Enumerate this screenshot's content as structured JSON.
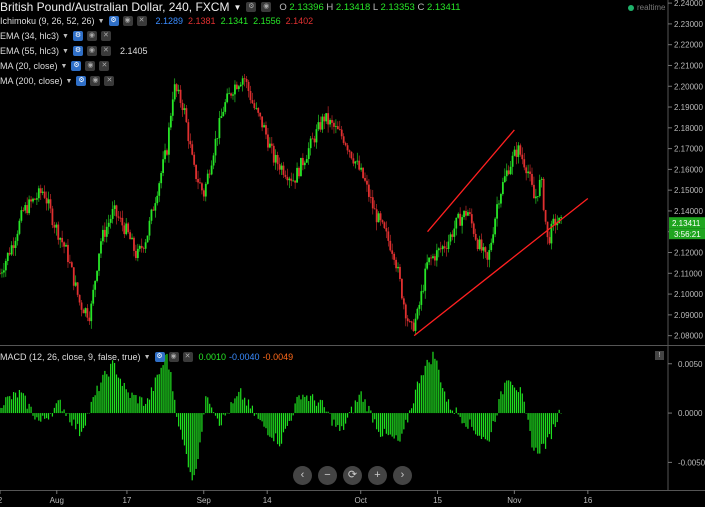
{
  "header": {
    "title": "British Pound/Australian Dollar, 240, FXCM",
    "o_label": "O",
    "o": "2.13396",
    "h_label": "H",
    "h": "2.13418",
    "l_label": "L",
    "l": "2.13353",
    "c_label": "C",
    "c": "2.13411",
    "realtime": "realtime"
  },
  "indicators": [
    {
      "label": "Ichimoku (9, 26, 52, 26)",
      "values": [
        "2.1289",
        "2.1381",
        "2.1341",
        "2.1556",
        "2.1402"
      ],
      "colors": [
        "#3a8cff",
        "#e03030",
        "#27e627",
        "#27e627",
        "#e03030"
      ]
    },
    {
      "label": "EMA (34, hlc3)",
      "values": []
    },
    {
      "label": "EMA (55, hlc3)",
      "values": [
        "2.1405"
      ],
      "colors": [
        "#ddd"
      ]
    },
    {
      "label": "MA (20, close)",
      "values": []
    },
    {
      "label": "MA (200, close)",
      "values": []
    }
  ],
  "macd": {
    "label": "MACD (12, 26, close, 9, false, true)",
    "values": [
      "0.0010",
      "-0.0040",
      "-0.0049"
    ],
    "colors": [
      "#27e627",
      "#3a8cff",
      "#ff6a1a"
    ]
  },
  "price_badges": {
    "last": "2.13411",
    "countdown": "3:56:21"
  },
  "nav": [
    "‹",
    "−",
    "⟳",
    "+",
    "›"
  ],
  "colors": {
    "up": "#27e627",
    "down": "#e03030",
    "channel": "#ff2020",
    "hist": "#1fe01f",
    "background": "#000000"
  },
  "chart_data": {
    "type": "candlestick",
    "price_axis": {
      "ticks": [
        "2.24000",
        "2.23000",
        "2.22000",
        "2.21000",
        "2.20000",
        "2.19000",
        "2.18000",
        "2.17000",
        "2.16000",
        "2.15000",
        "2.14000",
        "2.13000",
        "2.12000",
        "2.11000",
        "2.10000",
        "2.09000",
        "2.08000"
      ],
      "range": [
        2.0755,
        2.2415
      ]
    },
    "time_axis": {
      "labels": [
        "2",
        "Aug",
        "17",
        "Sep",
        "14",
        "Oct",
        "15",
        "Nov",
        "16"
      ],
      "label_positions": [
        0.0,
        0.085,
        0.19,
        0.305,
        0.4,
        0.54,
        0.655,
        0.77,
        0.88
      ]
    },
    "price_path": [
      [
        0.0,
        2.11
      ],
      [
        0.02,
        2.125
      ],
      [
        0.035,
        2.14
      ],
      [
        0.05,
        2.145
      ],
      [
        0.065,
        2.15
      ],
      [
        0.08,
        2.135
      ],
      [
        0.1,
        2.12
      ],
      [
        0.12,
        2.095
      ],
      [
        0.135,
        2.09
      ],
      [
        0.15,
        2.125
      ],
      [
        0.17,
        2.14
      ],
      [
        0.19,
        2.13
      ],
      [
        0.205,
        2.118
      ],
      [
        0.22,
        2.128
      ],
      [
        0.235,
        2.15
      ],
      [
        0.25,
        2.17
      ],
      [
        0.26,
        2.2
      ],
      [
        0.275,
        2.19
      ],
      [
        0.29,
        2.16
      ],
      [
        0.305,
        2.148
      ],
      [
        0.32,
        2.17
      ],
      [
        0.335,
        2.19
      ],
      [
        0.35,
        2.2
      ],
      [
        0.365,
        2.205
      ],
      [
        0.38,
        2.19
      ],
      [
        0.395,
        2.18
      ],
      [
        0.41,
        2.165
      ],
      [
        0.425,
        2.16
      ],
      [
        0.44,
        2.155
      ],
      [
        0.455,
        2.165
      ],
      [
        0.47,
        2.175
      ],
      [
        0.485,
        2.185
      ],
      [
        0.5,
        2.18
      ],
      [
        0.515,
        2.175
      ],
      [
        0.53,
        2.165
      ],
      [
        0.545,
        2.155
      ],
      [
        0.56,
        2.14
      ],
      [
        0.575,
        2.13
      ],
      [
        0.59,
        2.12
      ],
      [
        0.605,
        2.095
      ],
      [
        0.615,
        2.082
      ],
      [
        0.625,
        2.09
      ],
      [
        0.64,
        2.115
      ],
      [
        0.655,
        2.12
      ],
      [
        0.67,
        2.125
      ],
      [
        0.685,
        2.135
      ],
      [
        0.7,
        2.14
      ],
      [
        0.715,
        2.125
      ],
      [
        0.73,
        2.115
      ],
      [
        0.745,
        2.145
      ],
      [
        0.76,
        2.16
      ],
      [
        0.775,
        2.17
      ],
      [
        0.79,
        2.16
      ],
      [
        0.8,
        2.145
      ],
      [
        0.81,
        2.155
      ],
      [
        0.82,
        2.125
      ],
      [
        0.83,
        2.135
      ],
      [
        0.84,
        2.134
      ]
    ],
    "channel": {
      "upper": [
        [
          0.64,
          2.13
        ],
        [
          0.77,
          2.179
        ]
      ],
      "lower": [
        [
          0.62,
          2.08
        ],
        [
          0.88,
          2.146
        ]
      ]
    },
    "macd_axis": {
      "ticks": [
        "0.0050",
        "0.0000",
        "-0.0050"
      ],
      "range": [
        -0.0078,
        0.0068
      ]
    },
    "macd_hist_path": [
      [
        0.0,
        0.001
      ],
      [
        0.03,
        0.002
      ],
      [
        0.06,
        -0.001
      ],
      [
        0.09,
        0.001
      ],
      [
        0.12,
        -0.002
      ],
      [
        0.15,
        0.003
      ],
      [
        0.17,
        0.005
      ],
      [
        0.19,
        0.002
      ],
      [
        0.22,
        0.001
      ],
      [
        0.25,
        0.006
      ],
      [
        0.27,
        -0.002
      ],
      [
        0.29,
        -0.007
      ],
      [
        0.31,
        0.002
      ],
      [
        0.33,
        -0.001
      ],
      [
        0.36,
        0.002
      ],
      [
        0.39,
        -0.001
      ],
      [
        0.42,
        -0.003
      ],
      [
        0.45,
        0.002
      ],
      [
        0.48,
        0.001
      ],
      [
        0.51,
        -0.002
      ],
      [
        0.54,
        0.002
      ],
      [
        0.57,
        -0.002
      ],
      [
        0.6,
        -0.003
      ],
      [
        0.63,
        0.004
      ],
      [
        0.65,
        0.006
      ],
      [
        0.67,
        0.001
      ],
      [
        0.7,
        -0.001
      ],
      [
        0.73,
        -0.003
      ],
      [
        0.76,
        0.004
      ],
      [
        0.78,
        0.002
      ],
      [
        0.8,
        -0.004
      ],
      [
        0.82,
        -0.003
      ],
      [
        0.84,
        0.0005
      ]
    ]
  }
}
